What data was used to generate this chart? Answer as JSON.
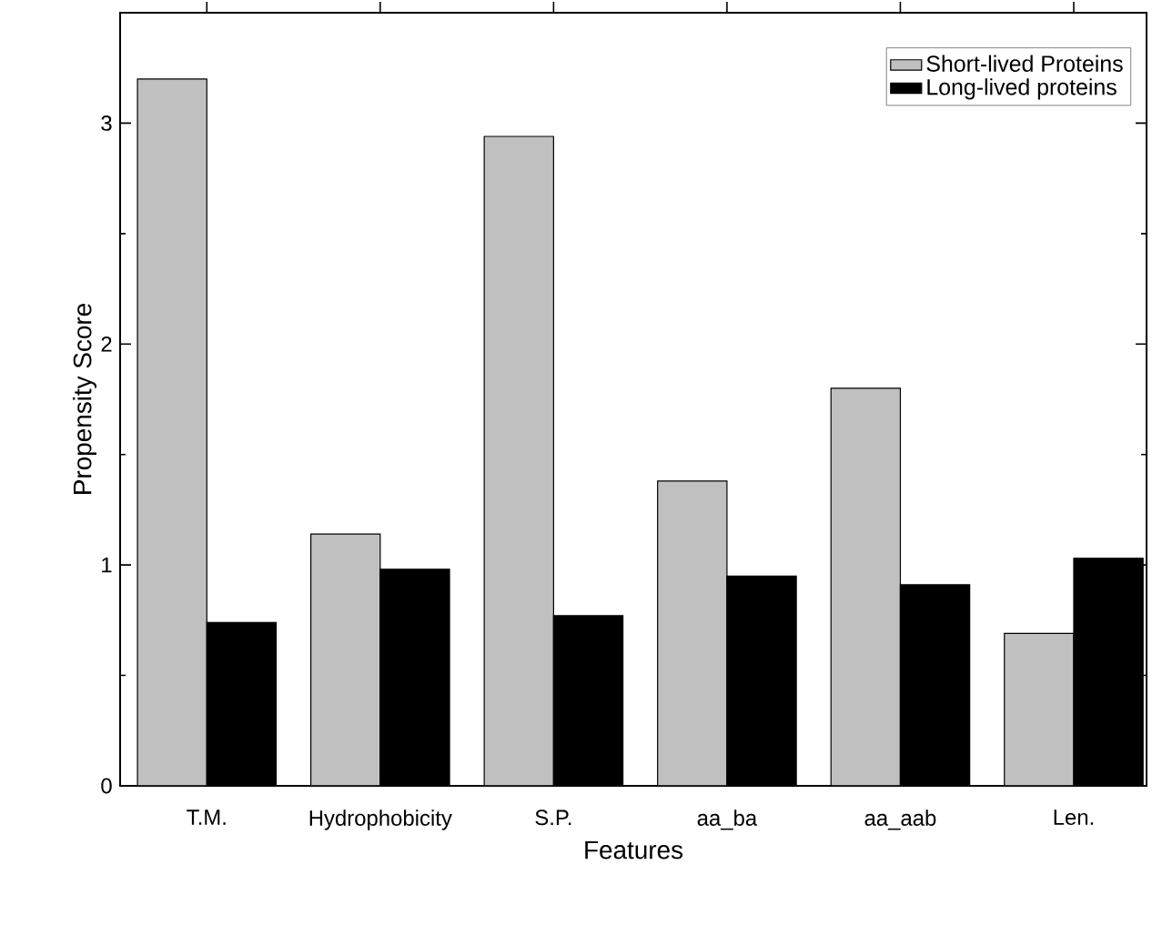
{
  "chart_data": {
    "type": "bar",
    "xlabel": "Features",
    "ylabel": "Propensity Score",
    "categories": [
      "T.M.",
      "Hydrophobicity",
      "S.P.",
      "aa_ba",
      "aa_aab",
      "Len."
    ],
    "series": [
      {
        "name": "Short-lived Proteins",
        "color": "#c0c0c0",
        "values": [
          3.2,
          1.14,
          2.94,
          1.38,
          1.8,
          0.69
        ]
      },
      {
        "name": "Long-lived proteins",
        "color": "#000000",
        "values": [
          0.74,
          0.98,
          0.77,
          0.95,
          0.91,
          1.03
        ]
      }
    ],
    "ylim": [
      0,
      3.5
    ],
    "yticks": [
      0,
      1,
      2,
      3
    ],
    "grid": false,
    "legend": "top right"
  }
}
